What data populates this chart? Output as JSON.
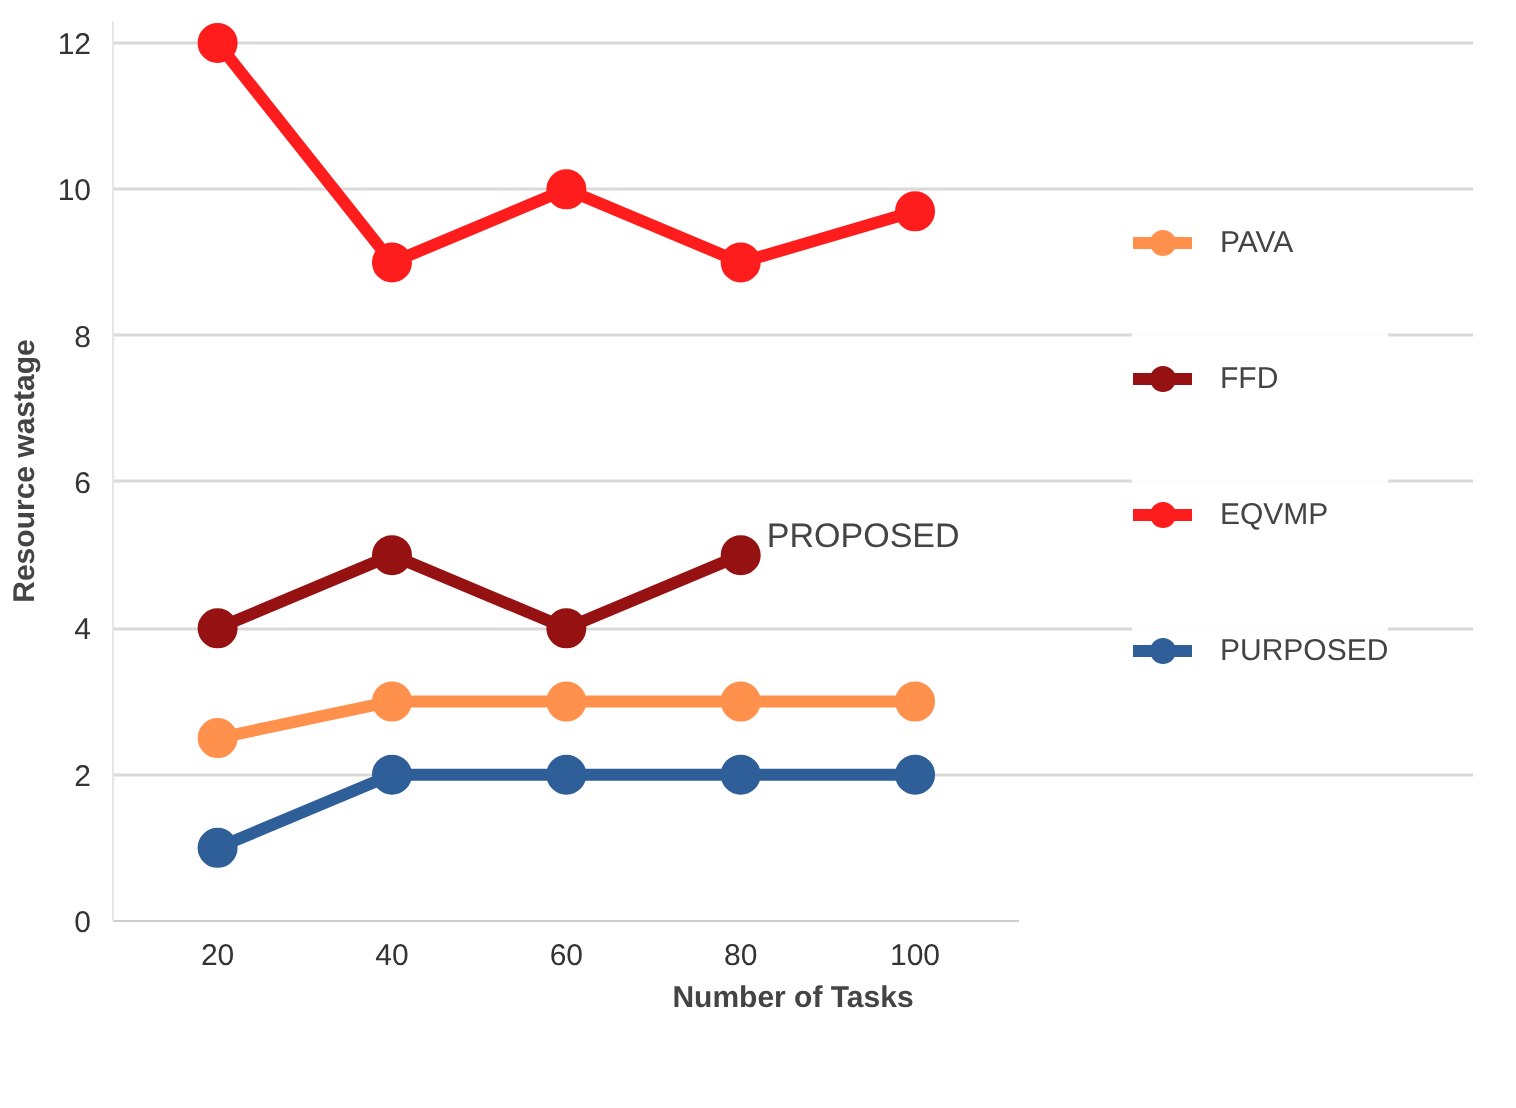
{
  "chart_data": {
    "type": "line",
    "xlabel": "Number of Tasks",
    "ylabel": "Resource wastage",
    "categories": [
      "20",
      "40",
      "60",
      "80",
      "100"
    ],
    "series": [
      {
        "name": "PAVA",
        "color": "#ff914d",
        "values": [
          2.5,
          3,
          3,
          3,
          3
        ]
      },
      {
        "name": "FFD",
        "color": "#961212",
        "values": [
          4,
          5,
          4,
          5,
          null
        ]
      },
      {
        "name": "EQVMP",
        "color": "#ff1c1c",
        "values": [
          12,
          9,
          10,
          9,
          9.7
        ]
      },
      {
        "name": "PURPOSED",
        "color": "#2f5f98",
        "values": [
          1,
          2,
          2,
          2,
          2
        ]
      }
    ],
    "ylim": [
      0,
      12.3
    ],
    "yticks": [
      0,
      2,
      4,
      6,
      8,
      10,
      12
    ],
    "grid": "y",
    "legend": "right",
    "marker": "circle",
    "annotations": [
      "PROPOSED"
    ]
  }
}
